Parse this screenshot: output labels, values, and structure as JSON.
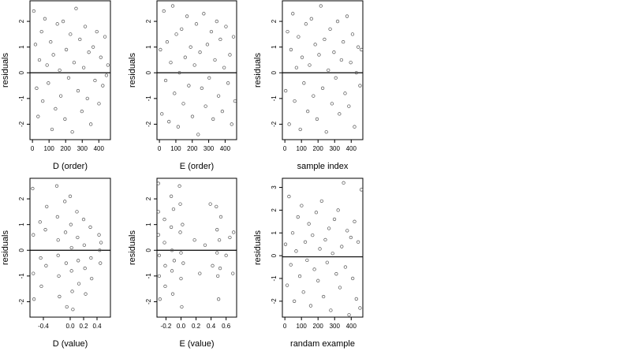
{
  "figure": {
    "panels": [
      {
        "id": "d-order",
        "xlabel": "D (order)",
        "ylabel": "residuals"
      },
      {
        "id": "e-order",
        "xlabel": "E (order)",
        "ylabel": "residuals"
      },
      {
        "id": "sample-index",
        "xlabel": "sample index",
        "ylabel": "residuals"
      },
      {
        "id": "d-value",
        "xlabel": "D (value)",
        "ylabel": "residuals"
      },
      {
        "id": "e-value",
        "xlabel": "E (value)",
        "ylabel": "residuals"
      },
      {
        "id": "random-example",
        "xlabel": "randam example",
        "ylabel": "residuals"
      }
    ]
  },
  "chart_data": [
    {
      "type": "scatter",
      "xlabel": "D (order)",
      "ylabel": "residuals",
      "xlim": [
        -15,
        470
      ],
      "ylim": [
        -2.6,
        2.8
      ],
      "xticks": [
        0,
        100,
        200,
        300,
        400
      ],
      "yticks": [
        -2,
        -1,
        0,
        1,
        2
      ],
      "hline": 0,
      "points": [
        [
          8,
          2.4
        ],
        [
          18,
          1.1
        ],
        [
          25,
          -0.6
        ],
        [
          34,
          -1.7
        ],
        [
          42,
          0.5
        ],
        [
          55,
          1.6
        ],
        [
          62,
          -1.1
        ],
        [
          75,
          2.1
        ],
        [
          88,
          0.3
        ],
        [
          96,
          -0.4
        ],
        [
          110,
          1.2
        ],
        [
          118,
          -2.2
        ],
        [
          126,
          0.7
        ],
        [
          139,
          -1.4
        ],
        [
          150,
          1.9
        ],
        [
          164,
          0.1
        ],
        [
          171,
          -0.9
        ],
        [
          185,
          2.0
        ],
        [
          196,
          -1.8
        ],
        [
          204,
          0.9
        ],
        [
          218,
          -0.2
        ],
        [
          229,
          1.5
        ],
        [
          240,
          -2.3
        ],
        [
          251,
          0.4
        ],
        [
          263,
          2.5
        ],
        [
          275,
          -0.7
        ],
        [
          286,
          1.3
        ],
        [
          298,
          -1.5
        ],
        [
          309,
          0.2
        ],
        [
          318,
          1.8
        ],
        [
          331,
          -1.0
        ],
        [
          340,
          0.8
        ],
        [
          352,
          -2.0
        ],
        [
          366,
          1.0
        ],
        [
          377,
          -0.3
        ],
        [
          388,
          1.6
        ],
        [
          401,
          -1.2
        ],
        [
          412,
          0.6
        ],
        [
          424,
          -0.5
        ],
        [
          437,
          1.4
        ],
        [
          446,
          -0.1
        ],
        [
          455,
          0.3
        ]
      ]
    },
    {
      "type": "scatter",
      "xlabel": "E (order)",
      "ylabel": "residuals",
      "xlim": [
        -15,
        470
      ],
      "ylim": [
        -2.6,
        2.8
      ],
      "xticks": [
        0,
        100,
        200,
        300,
        400
      ],
      "yticks": [
        -2,
        -1,
        0,
        1,
        2
      ],
      "hline": 0,
      "points": [
        [
          6,
          0.9
        ],
        [
          15,
          -1.6
        ],
        [
          27,
          2.4
        ],
        [
          38,
          -0.3
        ],
        [
          47,
          1.2
        ],
        [
          58,
          -1.9
        ],
        [
          69,
          0.4
        ],
        [
          81,
          2.6
        ],
        [
          92,
          -0.8
        ],
        [
          103,
          1.5
        ],
        [
          114,
          -2.1
        ],
        [
          122,
          0.0
        ],
        [
          135,
          1.7
        ],
        [
          146,
          -1.2
        ],
        [
          157,
          0.6
        ],
        [
          168,
          2.2
        ],
        [
          179,
          -0.5
        ],
        [
          190,
          1.0
        ],
        [
          201,
          -1.7
        ],
        [
          214,
          0.3
        ],
        [
          225,
          1.9
        ],
        [
          236,
          -2.4
        ],
        [
          247,
          0.8
        ],
        [
          258,
          -0.6
        ],
        [
          270,
          2.3
        ],
        [
          281,
          -1.3
        ],
        [
          292,
          1.1
        ],
        [
          303,
          -0.2
        ],
        [
          316,
          1.6
        ],
        [
          327,
          -1.8
        ],
        [
          338,
          0.5
        ],
        [
          349,
          2.0
        ],
        [
          360,
          -0.9
        ],
        [
          371,
          1.3
        ],
        [
          383,
          -1.5
        ],
        [
          394,
          0.2
        ],
        [
          405,
          1.8
        ],
        [
          418,
          -0.4
        ],
        [
          429,
          0.7
        ],
        [
          440,
          -2.0
        ],
        [
          451,
          1.4
        ],
        [
          460,
          -1.1
        ]
      ]
    },
    {
      "type": "scatter",
      "xlabel": "sample index",
      "ylabel": "residuals",
      "xlim": [
        -15,
        470
      ],
      "ylim": [
        -2.6,
        2.8
      ],
      "xticks": [
        0,
        100,
        200,
        300,
        400
      ],
      "yticks": [
        -2,
        -1,
        0,
        1,
        2
      ],
      "hline": 0,
      "points": [
        [
          5,
          -0.7
        ],
        [
          16,
          1.6
        ],
        [
          26,
          -2.0
        ],
        [
          37,
          0.9
        ],
        [
          48,
          2.3
        ],
        [
          59,
          -1.1
        ],
        [
          70,
          0.2
        ],
        [
          82,
          1.4
        ],
        [
          93,
          -2.2
        ],
        [
          104,
          0.6
        ],
        [
          115,
          -0.4
        ],
        [
          127,
          1.9
        ],
        [
          138,
          -1.5
        ],
        [
          149,
          0.3
        ],
        [
          160,
          2.1
        ],
        [
          172,
          -0.9
        ],
        [
          183,
          1.1
        ],
        [
          194,
          -1.8
        ],
        [
          206,
          0.7
        ],
        [
          217,
          2.6
        ],
        [
          228,
          -0.6
        ],
        [
          239,
          1.3
        ],
        [
          250,
          -2.3
        ],
        [
          262,
          0.1
        ],
        [
          273,
          1.7
        ],
        [
          284,
          -1.2
        ],
        [
          296,
          0.8
        ],
        [
          307,
          -0.2
        ],
        [
          318,
          2.0
        ],
        [
          329,
          -1.6
        ],
        [
          341,
          0.5
        ],
        [
          352,
          1.2
        ],
        [
          363,
          -0.8
        ],
        [
          375,
          2.2
        ],
        [
          386,
          -1.3
        ],
        [
          397,
          0.4
        ],
        [
          408,
          1.5
        ],
        [
          420,
          -2.1
        ],
        [
          431,
          0.0
        ],
        [
          442,
          1.0
        ],
        [
          453,
          -0.5
        ],
        [
          461,
          0.9
        ]
      ]
    },
    {
      "type": "scatter",
      "xlabel": "D (value)",
      "ylabel": "residuals",
      "xlim": [
        -0.6,
        0.6
      ],
      "ylim": [
        -2.6,
        2.8
      ],
      "xticks": [
        -0.4,
        0.0,
        0.2,
        0.4
      ],
      "yticks": [
        -2,
        -1,
        0,
        1,
        2
      ],
      "hline": 0,
      "points": [
        [
          -0.56,
          2.4
        ],
        [
          -0.55,
          0.6
        ],
        [
          -0.55,
          -0.9
        ],
        [
          -0.54,
          -1.9
        ],
        [
          -0.45,
          1.1
        ],
        [
          -0.44,
          -0.3
        ],
        [
          -0.43,
          -1.4
        ],
        [
          -0.37,
          0.8
        ],
        [
          -0.36,
          -0.6
        ],
        [
          -0.35,
          1.7
        ],
        [
          -0.2,
          2.5
        ],
        [
          -0.19,
          1.3
        ],
        [
          -0.18,
          0.4
        ],
        [
          -0.18,
          -0.2
        ],
        [
          -0.17,
          -1.0
        ],
        [
          -0.16,
          -1.8
        ],
        [
          -0.08,
          1.9
        ],
        [
          -0.07,
          0.7
        ],
        [
          -0.06,
          -0.5
        ],
        [
          -0.05,
          -2.2
        ],
        [
          0.0,
          2.1
        ],
        [
          0.01,
          1.0
        ],
        [
          0.02,
          0.1
        ],
        [
          0.02,
          -0.8
        ],
        [
          0.03,
          -1.6
        ],
        [
          0.04,
          -2.3
        ],
        [
          0.1,
          1.5
        ],
        [
          0.11,
          0.5
        ],
        [
          0.12,
          -0.4
        ],
        [
          0.13,
          -1.3
        ],
        [
          0.2,
          1.2
        ],
        [
          0.21,
          0.2
        ],
        [
          0.22,
          -0.7
        ],
        [
          0.23,
          -1.7
        ],
        [
          0.3,
          0.9
        ],
        [
          0.31,
          -0.3
        ],
        [
          0.32,
          -1.1
        ],
        [
          0.43,
          0.6
        ],
        [
          0.44,
          0.0
        ],
        [
          0.45,
          -0.5
        ],
        [
          0.46,
          0.3
        ]
      ]
    },
    {
      "type": "scatter",
      "xlabel": "E (value)",
      "ylabel": "residuals",
      "xlim": [
        -0.32,
        0.74
      ],
      "ylim": [
        -2.6,
        2.8
      ],
      "xticks": [
        -0.2,
        0.0,
        0.2,
        0.4,
        0.6
      ],
      "yticks": [
        -2,
        -1,
        0,
        1,
        2
      ],
      "hline": 0,
      "points": [
        [
          -0.3,
          2.6
        ],
        [
          -0.3,
          1.5
        ],
        [
          -0.3,
          0.6
        ],
        [
          -0.29,
          -0.2
        ],
        [
          -0.29,
          -1.0
        ],
        [
          -0.28,
          -1.9
        ],
        [
          -0.22,
          1.2
        ],
        [
          -0.22,
          0.3
        ],
        [
          -0.21,
          -0.6
        ],
        [
          -0.21,
          -1.4
        ],
        [
          -0.13,
          2.1
        ],
        [
          -0.13,
          0.9
        ],
        [
          -0.12,
          0.0
        ],
        [
          -0.12,
          -0.8
        ],
        [
          -0.11,
          -1.7
        ],
        [
          -0.1,
          1.6
        ],
        [
          -0.09,
          -0.4
        ],
        [
          -0.02,
          2.5
        ],
        [
          -0.01,
          1.8
        ],
        [
          -0.01,
          0.7
        ],
        [
          0.0,
          -0.1
        ],
        [
          0.0,
          -1.1
        ],
        [
          0.01,
          -2.2
        ],
        [
          0.02,
          1.0
        ],
        [
          0.03,
          -0.5
        ],
        [
          0.18,
          0.4
        ],
        [
          0.25,
          -0.9
        ],
        [
          0.32,
          0.2
        ],
        [
          0.39,
          1.8
        ],
        [
          0.42,
          -0.6
        ],
        [
          0.47,
          1.7
        ],
        [
          0.48,
          0.8
        ],
        [
          0.48,
          -0.1
        ],
        [
          0.49,
          -1.0
        ],
        [
          0.5,
          -1.9
        ],
        [
          0.51,
          0.4
        ],
        [
          0.52,
          -0.7
        ],
        [
          0.53,
          1.3
        ],
        [
          0.6,
          -0.2
        ],
        [
          0.65,
          0.5
        ],
        [
          0.69,
          -0.9
        ],
        [
          0.7,
          0.7
        ]
      ]
    },
    {
      "type": "scatter",
      "xlabel": "randam example",
      "ylabel": "residuals",
      "xlim": [
        -15,
        470
      ],
      "ylim": [
        -2.7,
        3.4
      ],
      "xticks": [
        0,
        100,
        200,
        300,
        400
      ],
      "yticks": [
        -2,
        -1,
        0,
        1,
        2,
        3
      ],
      "hline": -0.05,
      "points": [
        [
          4,
          0.5
        ],
        [
          14,
          -1.3
        ],
        [
          25,
          2.6
        ],
        [
          36,
          -0.4
        ],
        [
          47,
          1.0
        ],
        [
          57,
          -2.0
        ],
        [
          68,
          0.2
        ],
        [
          79,
          1.7
        ],
        [
          90,
          -0.9
        ],
        [
          101,
          2.2
        ],
        [
          112,
          -1.6
        ],
        [
          123,
          0.6
        ],
        [
          134,
          -0.2
        ],
        [
          145,
          1.4
        ],
        [
          156,
          -2.2
        ],
        [
          167,
          0.9
        ],
        [
          178,
          -0.6
        ],
        [
          189,
          1.9
        ],
        [
          200,
          -1.1
        ],
        [
          211,
          0.3
        ],
        [
          222,
          2.4
        ],
        [
          233,
          -1.8
        ],
        [
          244,
          0.7
        ],
        [
          255,
          -0.3
        ],
        [
          266,
          1.2
        ],
        [
          277,
          -2.4
        ],
        [
          288,
          0.1
        ],
        [
          299,
          1.6
        ],
        [
          310,
          -0.8
        ],
        [
          321,
          2.0
        ],
        [
          332,
          -1.4
        ],
        [
          343,
          0.4
        ],
        [
          354,
          3.2
        ],
        [
          365,
          -0.5
        ],
        [
          376,
          1.1
        ],
        [
          387,
          -2.6
        ],
        [
          398,
          0.8
        ],
        [
          409,
          -1.0
        ],
        [
          420,
          1.5
        ],
        [
          431,
          -1.9
        ],
        [
          442,
          0.6
        ],
        [
          453,
          -2.3
        ],
        [
          461,
          2.9
        ]
      ]
    }
  ]
}
